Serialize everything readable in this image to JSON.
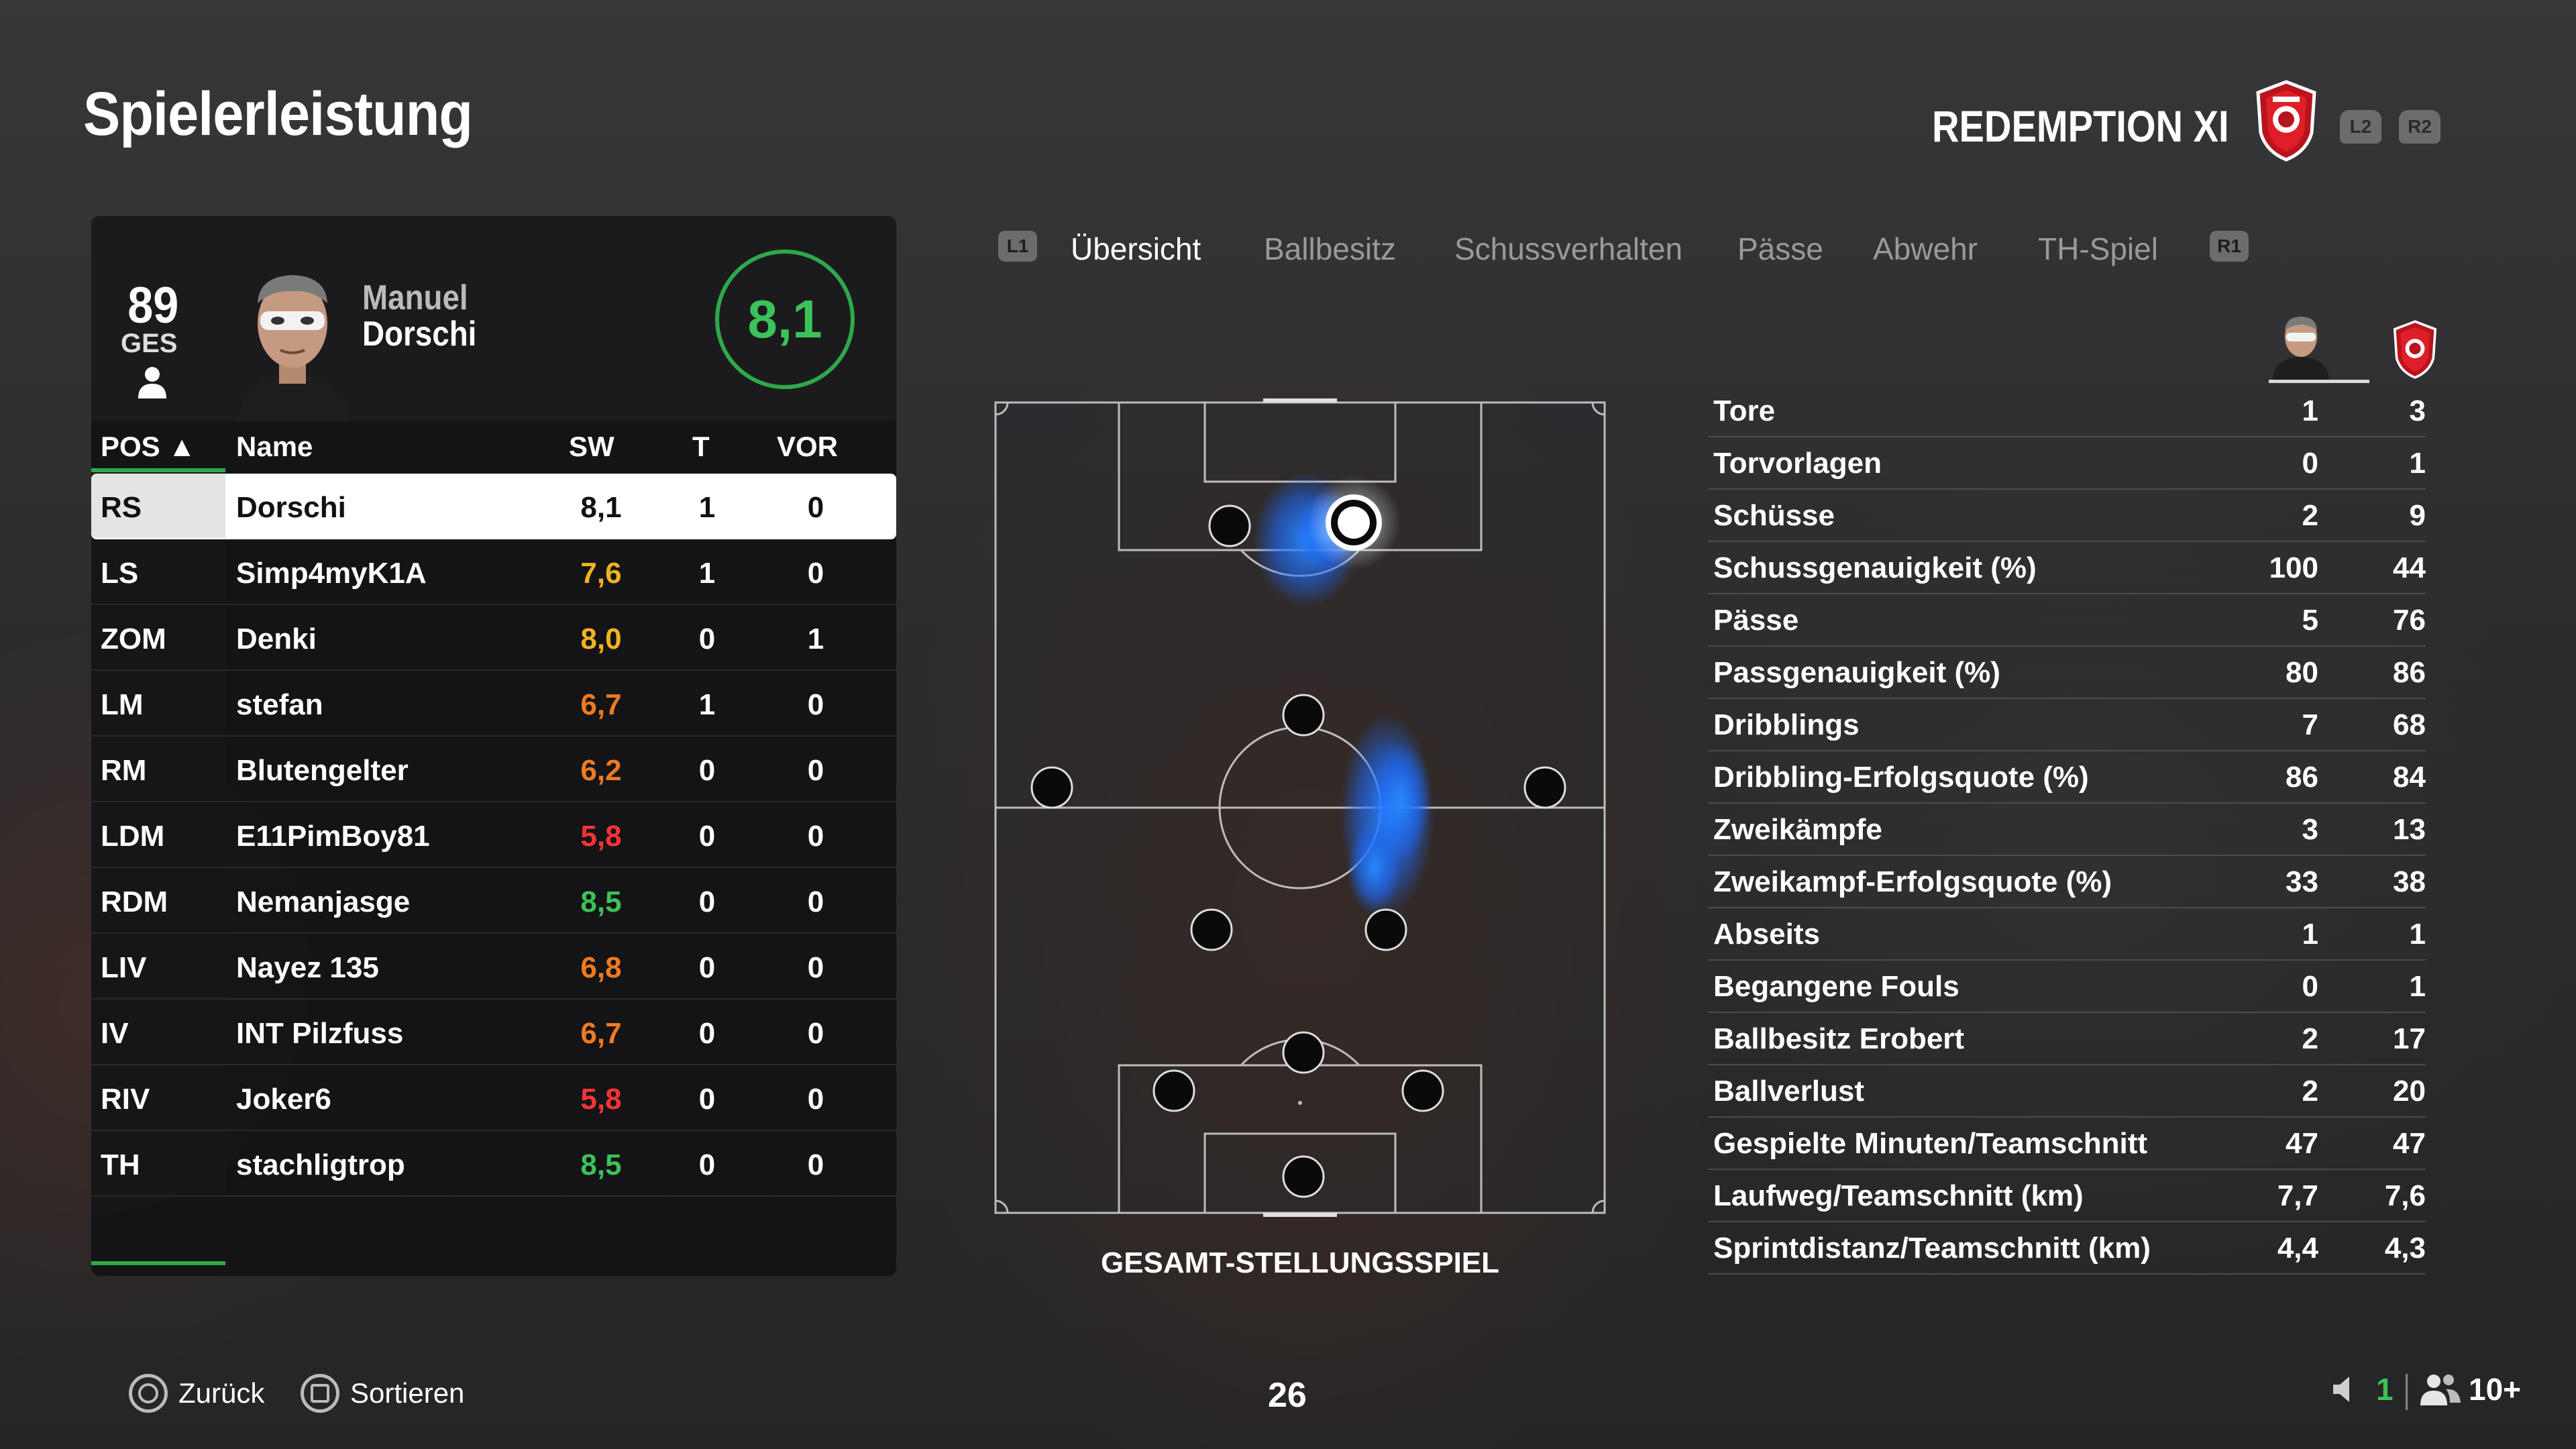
{
  "header": {
    "title": "Spielerleistung",
    "team_name": "REDEMPTION XI",
    "trigger_left": "L2",
    "trigger_right": "R2"
  },
  "player_card": {
    "overall": "89",
    "overall_label": "GES",
    "first_name": "Manuel",
    "last_name": "Dorschi",
    "rating": "8,1"
  },
  "table": {
    "columns": [
      "POS ▲",
      "Name",
      "SW",
      "T",
      "VOR"
    ],
    "rows": [
      {
        "pos": "RS",
        "name": "Dorschi",
        "sw": "8,1",
        "t": "1",
        "vor": "0",
        "color": "#111111"
      },
      {
        "pos": "LS",
        "name": "Simp4myK1A",
        "sw": "7,6",
        "t": "1",
        "vor": "0",
        "color": "#f2b321"
      },
      {
        "pos": "ZOM",
        "name": "Denki",
        "sw": "8,0",
        "t": "0",
        "vor": "1",
        "color": "#f2b321"
      },
      {
        "pos": "LM",
        "name": "stefan",
        "sw": "6,7",
        "t": "1",
        "vor": "0",
        "color": "#f07a22"
      },
      {
        "pos": "RM",
        "name": "Blutengelter",
        "sw": "6,2",
        "t": "0",
        "vor": "0",
        "color": "#f07a22"
      },
      {
        "pos": "LDM",
        "name": "E11PimBoy81",
        "sw": "5,8",
        "t": "0",
        "vor": "0",
        "color": "#ff3333"
      },
      {
        "pos": "RDM",
        "name": "Nemanjasge",
        "sw": "8,5",
        "t": "0",
        "vor": "0",
        "color": "#3cc25a"
      },
      {
        "pos": "LIV",
        "name": "Nayez 135",
        "sw": "6,8",
        "t": "0",
        "vor": "0",
        "color": "#f07a22"
      },
      {
        "pos": "IV",
        "name": "INT Pilzfuss",
        "sw": "6,7",
        "t": "0",
        "vor": "0",
        "color": "#f07a22"
      },
      {
        "pos": "RIV",
        "name": "Joker6",
        "sw": "5,8",
        "t": "0",
        "vor": "0",
        "color": "#ff3333"
      },
      {
        "pos": "TH",
        "name": "stachligtrop",
        "sw": "8,5",
        "t": "0",
        "vor": "0",
        "color": "#3cc25a"
      }
    ]
  },
  "tabs": {
    "left_bumper": "L1",
    "right_bumper": "R1",
    "items": [
      "Übersicht",
      "Ballbesitz",
      "Schussverhalten",
      "Pässe",
      "Abwehr",
      "TH-Spiel"
    ],
    "active": 0
  },
  "pitch": {
    "label": "GESAMT-STELLUNGSSPIEL"
  },
  "stats": [
    {
      "label": "Tore",
      "player": "1",
      "team": "3"
    },
    {
      "label": "Torvorlagen",
      "player": "0",
      "team": "1"
    },
    {
      "label": "Schüsse",
      "player": "2",
      "team": "9"
    },
    {
      "label": "Schussgenauigkeit (%)",
      "player": "100",
      "team": "44"
    },
    {
      "label": "Pässe",
      "player": "5",
      "team": "76"
    },
    {
      "label": "Passgenauigkeit (%)",
      "player": "80",
      "team": "86"
    },
    {
      "label": "Dribblings",
      "player": "7",
      "team": "68"
    },
    {
      "label": "Dribbling-Erfolgsquote (%)",
      "player": "86",
      "team": "84"
    },
    {
      "label": "Zweikämpfe",
      "player": "3",
      "team": "13"
    },
    {
      "label": "Zweikampf-Erfolgsquote (%)",
      "player": "33",
      "team": "38"
    },
    {
      "label": "Abseits",
      "player": "1",
      "team": "1"
    },
    {
      "label": "Begangene Fouls",
      "player": "0",
      "team": "1"
    },
    {
      "label": "Ballbesitz Erobert",
      "player": "2",
      "team": "17"
    },
    {
      "label": "Ballverlust",
      "player": "2",
      "team": "20"
    },
    {
      "label": "Gespielte Minuten/Teamschnitt",
      "player": "47",
      "team": "47"
    },
    {
      "label": "Laufweg/Teamschnitt (km)",
      "player": "7,7",
      "team": "7,6"
    },
    {
      "label": "Sprintdistanz/Teamschnitt (km)",
      "player": "4,4",
      "team": "4,3"
    }
  ],
  "footer": {
    "back_label": "Zurück",
    "sort_label": "Sortieren",
    "page_number": "26",
    "voice_count": "1",
    "party_count": "10+"
  },
  "colors": {
    "accent_green": "#2ea84a",
    "rating_green": "#3cc25a",
    "heat_blue": "#1e7bff"
  }
}
